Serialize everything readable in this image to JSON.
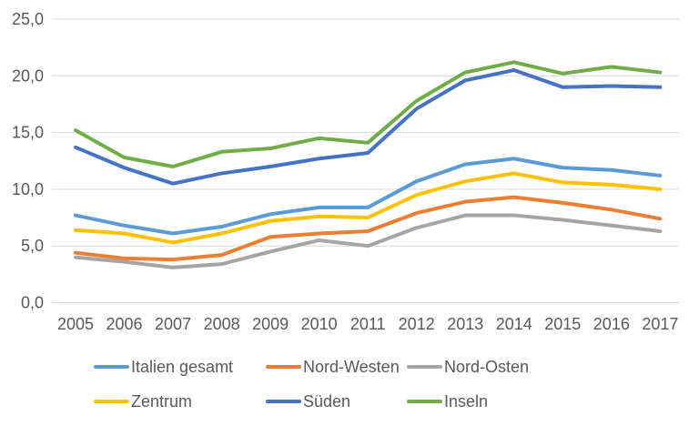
{
  "chart_data": {
    "type": "line",
    "title": "",
    "xlabel": "",
    "ylabel": "",
    "ylim": [
      0,
      25
    ],
    "grid": "horizontal",
    "legend_position": "bottom",
    "decimal_separator": ",",
    "y_ticks": [
      {
        "label": "25,0",
        "value": 25
      },
      {
        "label": "20,0",
        "value": 20
      },
      {
        "label": "15,0",
        "value": 15
      },
      {
        "label": "10,0",
        "value": 10
      },
      {
        "label": "5,0",
        "value": 5
      },
      {
        "label": "0,0",
        "value": 0
      }
    ],
    "categories": [
      "2005",
      "2006",
      "2007",
      "2008",
      "2009",
      "2010",
      "2011",
      "2012",
      "2013",
      "2014",
      "2015",
      "2016",
      "2017"
    ],
    "series": [
      {
        "name": "Italien gesamt",
        "color": "#5B9BD5",
        "values": [
          7.7,
          6.8,
          6.1,
          6.7,
          7.8,
          8.4,
          8.4,
          10.7,
          12.2,
          12.7,
          11.9,
          11.7,
          11.2
        ]
      },
      {
        "name": "Nord-Westen",
        "color": "#ED7D31",
        "values": [
          4.4,
          3.9,
          3.8,
          4.2,
          5.8,
          6.1,
          6.3,
          7.9,
          8.9,
          9.3,
          8.8,
          8.2,
          7.4
        ]
      },
      {
        "name": "Nord-Osten",
        "color": "#A5A5A5",
        "values": [
          4.0,
          3.6,
          3.1,
          3.4,
          4.5,
          5.5,
          5.0,
          6.6,
          7.7,
          7.7,
          7.3,
          6.8,
          6.3
        ]
      },
      {
        "name": "Zentrum",
        "color": "#FFC000",
        "values": [
          6.4,
          6.1,
          5.3,
          6.1,
          7.2,
          7.6,
          7.5,
          9.5,
          10.7,
          11.4,
          10.6,
          10.4,
          10.0
        ]
      },
      {
        "name": "Süden",
        "color": "#4472C4",
        "values": [
          13.7,
          11.9,
          10.5,
          11.4,
          12.0,
          12.7,
          13.2,
          17.1,
          19.6,
          20.5,
          19.0,
          19.1,
          19.0
        ]
      },
      {
        "name": "Inseln",
        "color": "#70AD47",
        "values": [
          15.2,
          12.8,
          12.0,
          13.3,
          13.6,
          14.5,
          14.1,
          17.8,
          20.3,
          21.2,
          20.2,
          20.8,
          20.3
        ]
      }
    ],
    "axis_text_color": "#595959",
    "gridline_color": "#D9D9D9"
  }
}
